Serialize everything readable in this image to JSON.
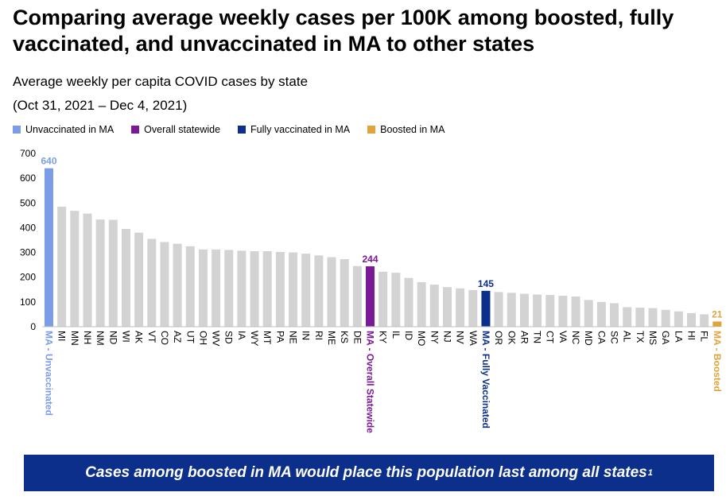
{
  "title": "Comparing average weekly cases per 100K among boosted, fully vaccinated, and unvaccinated in MA to other states",
  "subtitle": "Average weekly per capita COVID cases by state",
  "date_range": "(Oct 31, 2021 – Dec 4, 2021)",
  "legend": [
    {
      "label": "Unvaccinated in MA",
      "color": "#7b9de8"
    },
    {
      "label": "Overall statewide",
      "color": "#7a1a96"
    },
    {
      "label": "Fully vaccinated in MA",
      "color": "#0b2f8a"
    },
    {
      "label": "Boosted in MA",
      "color": "#e0a43c"
    }
  ],
  "banner": {
    "text": "Cases among boosted in MA would place this population last among all states",
    "sup": "1"
  },
  "chart_data": {
    "type": "bar",
    "title": "Average weekly per capita COVID cases by state",
    "xlabel": "",
    "ylabel": "",
    "ylim": [
      0,
      700
    ],
    "yticks": [
      0,
      100,
      200,
      300,
      400,
      500,
      600,
      700
    ],
    "grid": false,
    "default_color": "#d3d3d3",
    "categories": [
      "MA - Unvaccinated",
      "MI",
      "MN",
      "NH",
      "NM",
      "ND",
      "WI",
      "AK",
      "VT",
      "CO",
      "AZ",
      "UT",
      "OH",
      "WV",
      "SD",
      "IA",
      "WY",
      "MT",
      "PA",
      "NE",
      "IN",
      "RI",
      "ME",
      "KS",
      "DE",
      "MA - Overall Statewide",
      "KY",
      "IL",
      "ID",
      "MO",
      "NY",
      "NJ",
      "NV",
      "WA",
      "MA - Fully Vaccinated",
      "OR",
      "OK",
      "AR",
      "TN",
      "CT",
      "VA",
      "NC",
      "MD",
      "CA",
      "SC",
      "AL",
      "TX",
      "MS",
      "GA",
      "LA",
      "HI",
      "FL",
      "MA - Boosted"
    ],
    "values": [
      640,
      485,
      468,
      457,
      433,
      432,
      395,
      380,
      355,
      342,
      335,
      325,
      312,
      312,
      310,
      307,
      305,
      305,
      302,
      300,
      295,
      288,
      281,
      273,
      245,
      244,
      222,
      218,
      197,
      180,
      170,
      160,
      155,
      148,
      145,
      140,
      137,
      133,
      130,
      128,
      125,
      122,
      108,
      100,
      95,
      79,
      77,
      75,
      68,
      62,
      55,
      50,
      21
    ],
    "highlights": [
      {
        "category": "MA - Unvaccinated",
        "color": "#7b9de8",
        "label": "640"
      },
      {
        "category": "MA - Overall Statewide",
        "color": "#7a1a96",
        "label": "244"
      },
      {
        "category": "MA - Fully Vaccinated",
        "color": "#0b2f8a",
        "label": "145"
      },
      {
        "category": "MA - Boosted",
        "color": "#e0a43c",
        "label": "21"
      }
    ]
  }
}
